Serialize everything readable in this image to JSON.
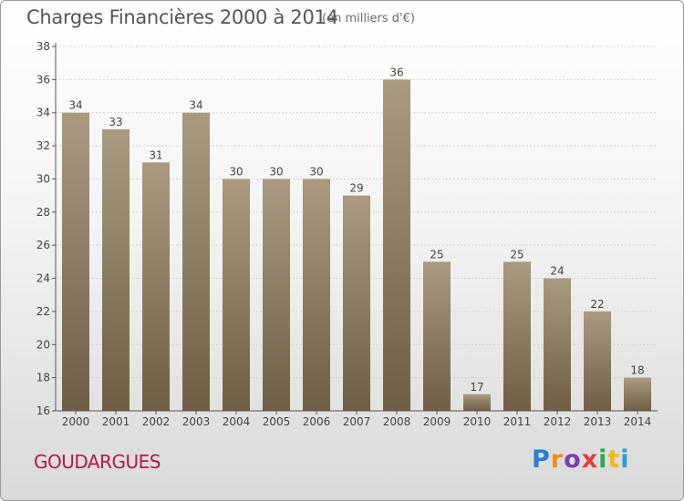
{
  "header": {
    "title": "Charges Financières 2000 à 2014",
    "subtitle": "(en milliers d'€)"
  },
  "footer": {
    "commune": "GOUDARGUES",
    "logo_text": "Proxiti",
    "logo_colors": [
      "#2a7fd4",
      "#f28c1c",
      "#7a3fb0",
      "#e23c3c",
      "#2fa84f",
      "#f2b81c",
      "#2a9fd4"
    ]
  },
  "chart_data": {
    "type": "bar",
    "categories": [
      "2000",
      "2001",
      "2002",
      "2003",
      "2004",
      "2005",
      "2006",
      "2007",
      "2008",
      "2009",
      "2010",
      "2011",
      "2012",
      "2013",
      "2014"
    ],
    "values": [
      34,
      33,
      31,
      34,
      30,
      30,
      30,
      29,
      36,
      25,
      17,
      25,
      24,
      22,
      18
    ],
    "ylim": [
      16,
      38
    ],
    "yticks": [
      16,
      18,
      20,
      22,
      24,
      26,
      28,
      30,
      32,
      34,
      36,
      38
    ],
    "grid": true,
    "colors": {
      "bar_top": "#a99a80",
      "bar_bottom": "#6f5e44",
      "axis": "#555555"
    }
  }
}
